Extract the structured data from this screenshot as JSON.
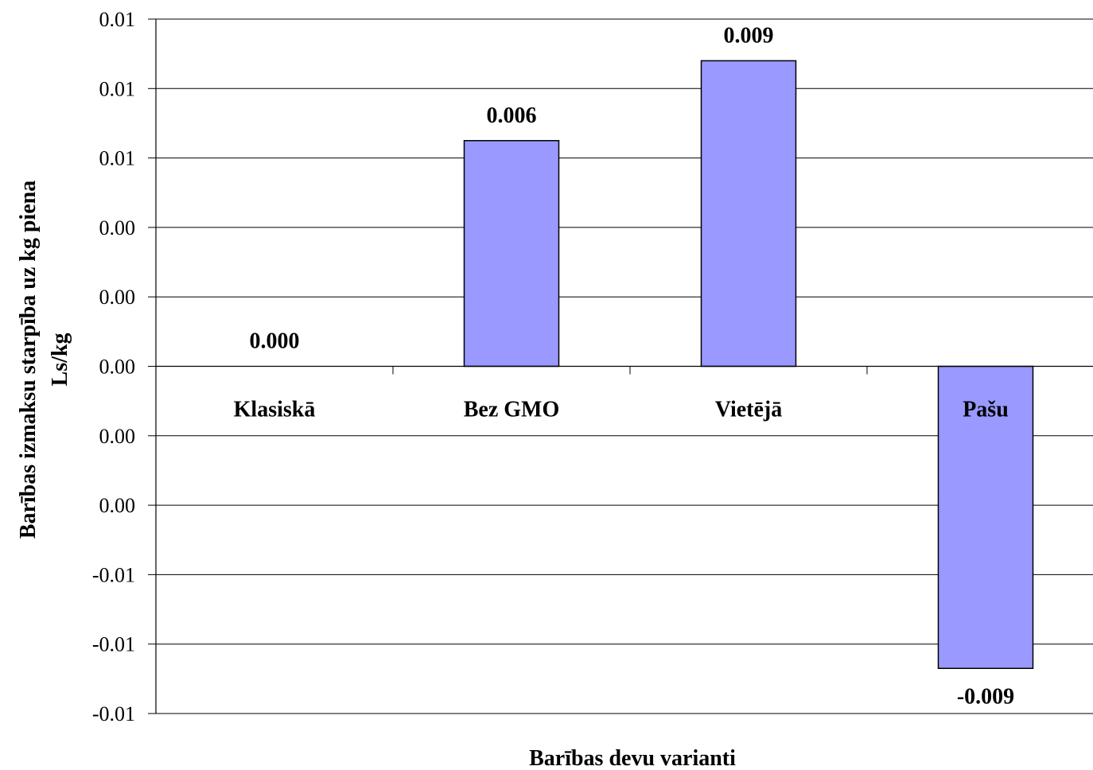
{
  "chart_data": {
    "type": "bar",
    "categories": [
      "Klasiskā",
      "Bez GMO",
      "Vietējā",
      "Pašu"
    ],
    "values": [
      0.0,
      0.0065,
      0.0088,
      -0.0087
    ],
    "data_labels": [
      "0.000",
      "0.006",
      "0.009",
      "-0.009"
    ],
    "ylim": [
      -0.01,
      0.01
    ],
    "yticks": [
      0.01,
      0.008,
      0.006,
      0.004,
      0.002,
      0.0,
      -0.002,
      -0.004,
      -0.006,
      -0.008,
      -0.01
    ],
    "ytick_labels": [
      "0.01",
      "0.01",
      "0.01",
      "0.00",
      "0.00",
      "0.00",
      "0.00",
      "0.00",
      "-0.01",
      "-0.01",
      "-0.01"
    ],
    "ylabel_line1": "Barības izmaksu starpība uz kg piena",
    "ylabel_line2": "Ls/kg",
    "xlabel": "Barības devu varianti",
    "bar_color": "#9999ff",
    "grid": true
  }
}
